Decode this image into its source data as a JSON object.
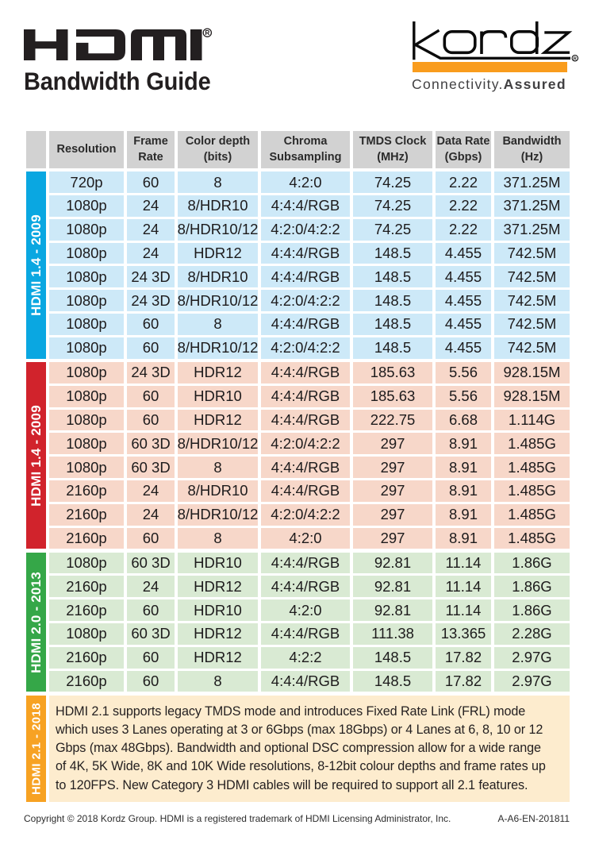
{
  "header": {
    "hdmi_logo_text": "HDMI",
    "hdmi_registered": "R",
    "title": "Bandwidth Guide",
    "kordz_logo_text": "kordz",
    "kordz_registered": "R",
    "tagline_regular": "Connectivity.",
    "tagline_bold": "Assured",
    "kordz_bar_color": "#F99C1D"
  },
  "table": {
    "header_bg": "#d2d2d2",
    "columns": [
      "Resolution",
      "Frame\nRate",
      "Color depth\n(bits)",
      "Chroma\nSubsampling",
      "TMDS Clock\n(MHz)",
      "Data Rate\n(Gbps)",
      "Bandwidth\n(Hz)"
    ],
    "groups": [
      {
        "label": "HDMI 1.4 - 2009",
        "accent": "#0aa7e1",
        "row_bg": "#cde9f8",
        "rows": [
          [
            "720p",
            "60",
            "8",
            "4:2:0",
            "74.25",
            "2.22",
            "371.25M"
          ],
          [
            "1080p",
            "24",
            "8/HDR10",
            "4:4:4/RGB",
            "74.25",
            "2.22",
            "371.25M"
          ],
          [
            "1080p",
            "24",
            "8/HDR10/12",
            "4:2:0/4:2:2",
            "74.25",
            "2.22",
            "371.25M"
          ],
          [
            "1080p",
            "24",
            "HDR12",
            "4:4:4/RGB",
            "148.5",
            "4.455",
            "742.5M"
          ],
          [
            "1080p",
            "24 3D",
            "8/HDR10",
            "4:4:4/RGB",
            "148.5",
            "4.455",
            "742.5M"
          ],
          [
            "1080p",
            "24 3D",
            "8/HDR10/12",
            "4:2:0/4:2:2",
            "148.5",
            "4.455",
            "742.5M"
          ],
          [
            "1080p",
            "60",
            "8",
            "4:4:4/RGB",
            "148.5",
            "4.455",
            "742.5M"
          ],
          [
            "1080p",
            "60",
            "8/HDR10/12",
            "4:2:0/4:2:2",
            "148.5",
            "4.455",
            "742.5M"
          ]
        ]
      },
      {
        "label": "HDMI 1.4 - 2009",
        "accent": "#d1232c",
        "row_bg": "#f7d7c9",
        "rows": [
          [
            "1080p",
            "24 3D",
            "HDR12",
            "4:4:4/RGB",
            "185.63",
            "5.56",
            "928.15M"
          ],
          [
            "1080p",
            "60",
            "HDR10",
            "4:4:4/RGB",
            "185.63",
            "5.56",
            "928.15M"
          ],
          [
            "1080p",
            "60",
            "HDR12",
            "4:4:4/RGB",
            "222.75",
            "6.68",
            "1.114G"
          ],
          [
            "1080p",
            "60 3D",
            "8/HDR10/12",
            "4:2:0/4:2:2",
            "297",
            "8.91",
            "1.485G"
          ],
          [
            "1080p",
            "60 3D",
            "8",
            "4:4:4/RGB",
            "297",
            "8.91",
            "1.485G"
          ],
          [
            "2160p",
            "24",
            "8/HDR10",
            "4:4:4/RGB",
            "297",
            "8.91",
            "1.485G"
          ],
          [
            "2160p",
            "24",
            "8/HDR10/12",
            "4:2:0/4:2:2",
            "297",
            "8.91",
            "1.485G"
          ],
          [
            "2160p",
            "60",
            "8",
            "4:2:0",
            "297",
            "8.91",
            "1.485G"
          ]
        ]
      },
      {
        "label": "HDMI 2.0 - 2013",
        "accent": "#35a748",
        "row_bg": "#d9ead3",
        "rows": [
          [
            "1080p",
            "60 3D",
            "HDR10",
            "4:4:4/RGB",
            "92.81",
            "11.14",
            "1.86G"
          ],
          [
            "2160p",
            "24",
            "HDR12",
            "4:4:4/RGB",
            "92.81",
            "11.14",
            "1.86G"
          ],
          [
            "2160p",
            "60",
            "HDR10",
            "4:2:0",
            "92.81",
            "11.14",
            "1.86G"
          ],
          [
            "1080p",
            "60 3D",
            "HDR12",
            "4:4:4/RGB",
            "111.38",
            "13.365",
            "2.28G"
          ],
          [
            "2160p",
            "60",
            "HDR12",
            "4:2:2",
            "148.5",
            "17.82",
            "2.97G"
          ],
          [
            "2160p",
            "60",
            "8",
            "4:4:4/RGB",
            "148.5",
            "17.82",
            "2.97G"
          ]
        ]
      }
    ],
    "note": {
      "label": "HDMI 2.1 - 2018",
      "accent": "#f7a223",
      "bg": "#fdecce",
      "text": "HDMI 2.1 supports legacy TMDS mode and introduces Fixed Rate Link (FRL) mode which uses 3 Lanes operating at 3 or 6Gbps (max 18Gbps) or 4 Lanes at 6, 8, 10 or 12 Gbps (max 48Gbps). Bandwidth and optional DSC compression allow for a wide range of 4K, 5K Wide, 8K and 10K Wide resolutions, 8-12bit colour depths and frame rates up to 120FPS.  New Category 3 HDMI cables will be required to support all 2.1 features."
    }
  },
  "footer": {
    "copyright": "Copyright © 2018 Kordz Group. HDMI is a registered trademark of HDMI Licensing Administrator, Inc.",
    "code": "A-A6-EN-201811"
  }
}
